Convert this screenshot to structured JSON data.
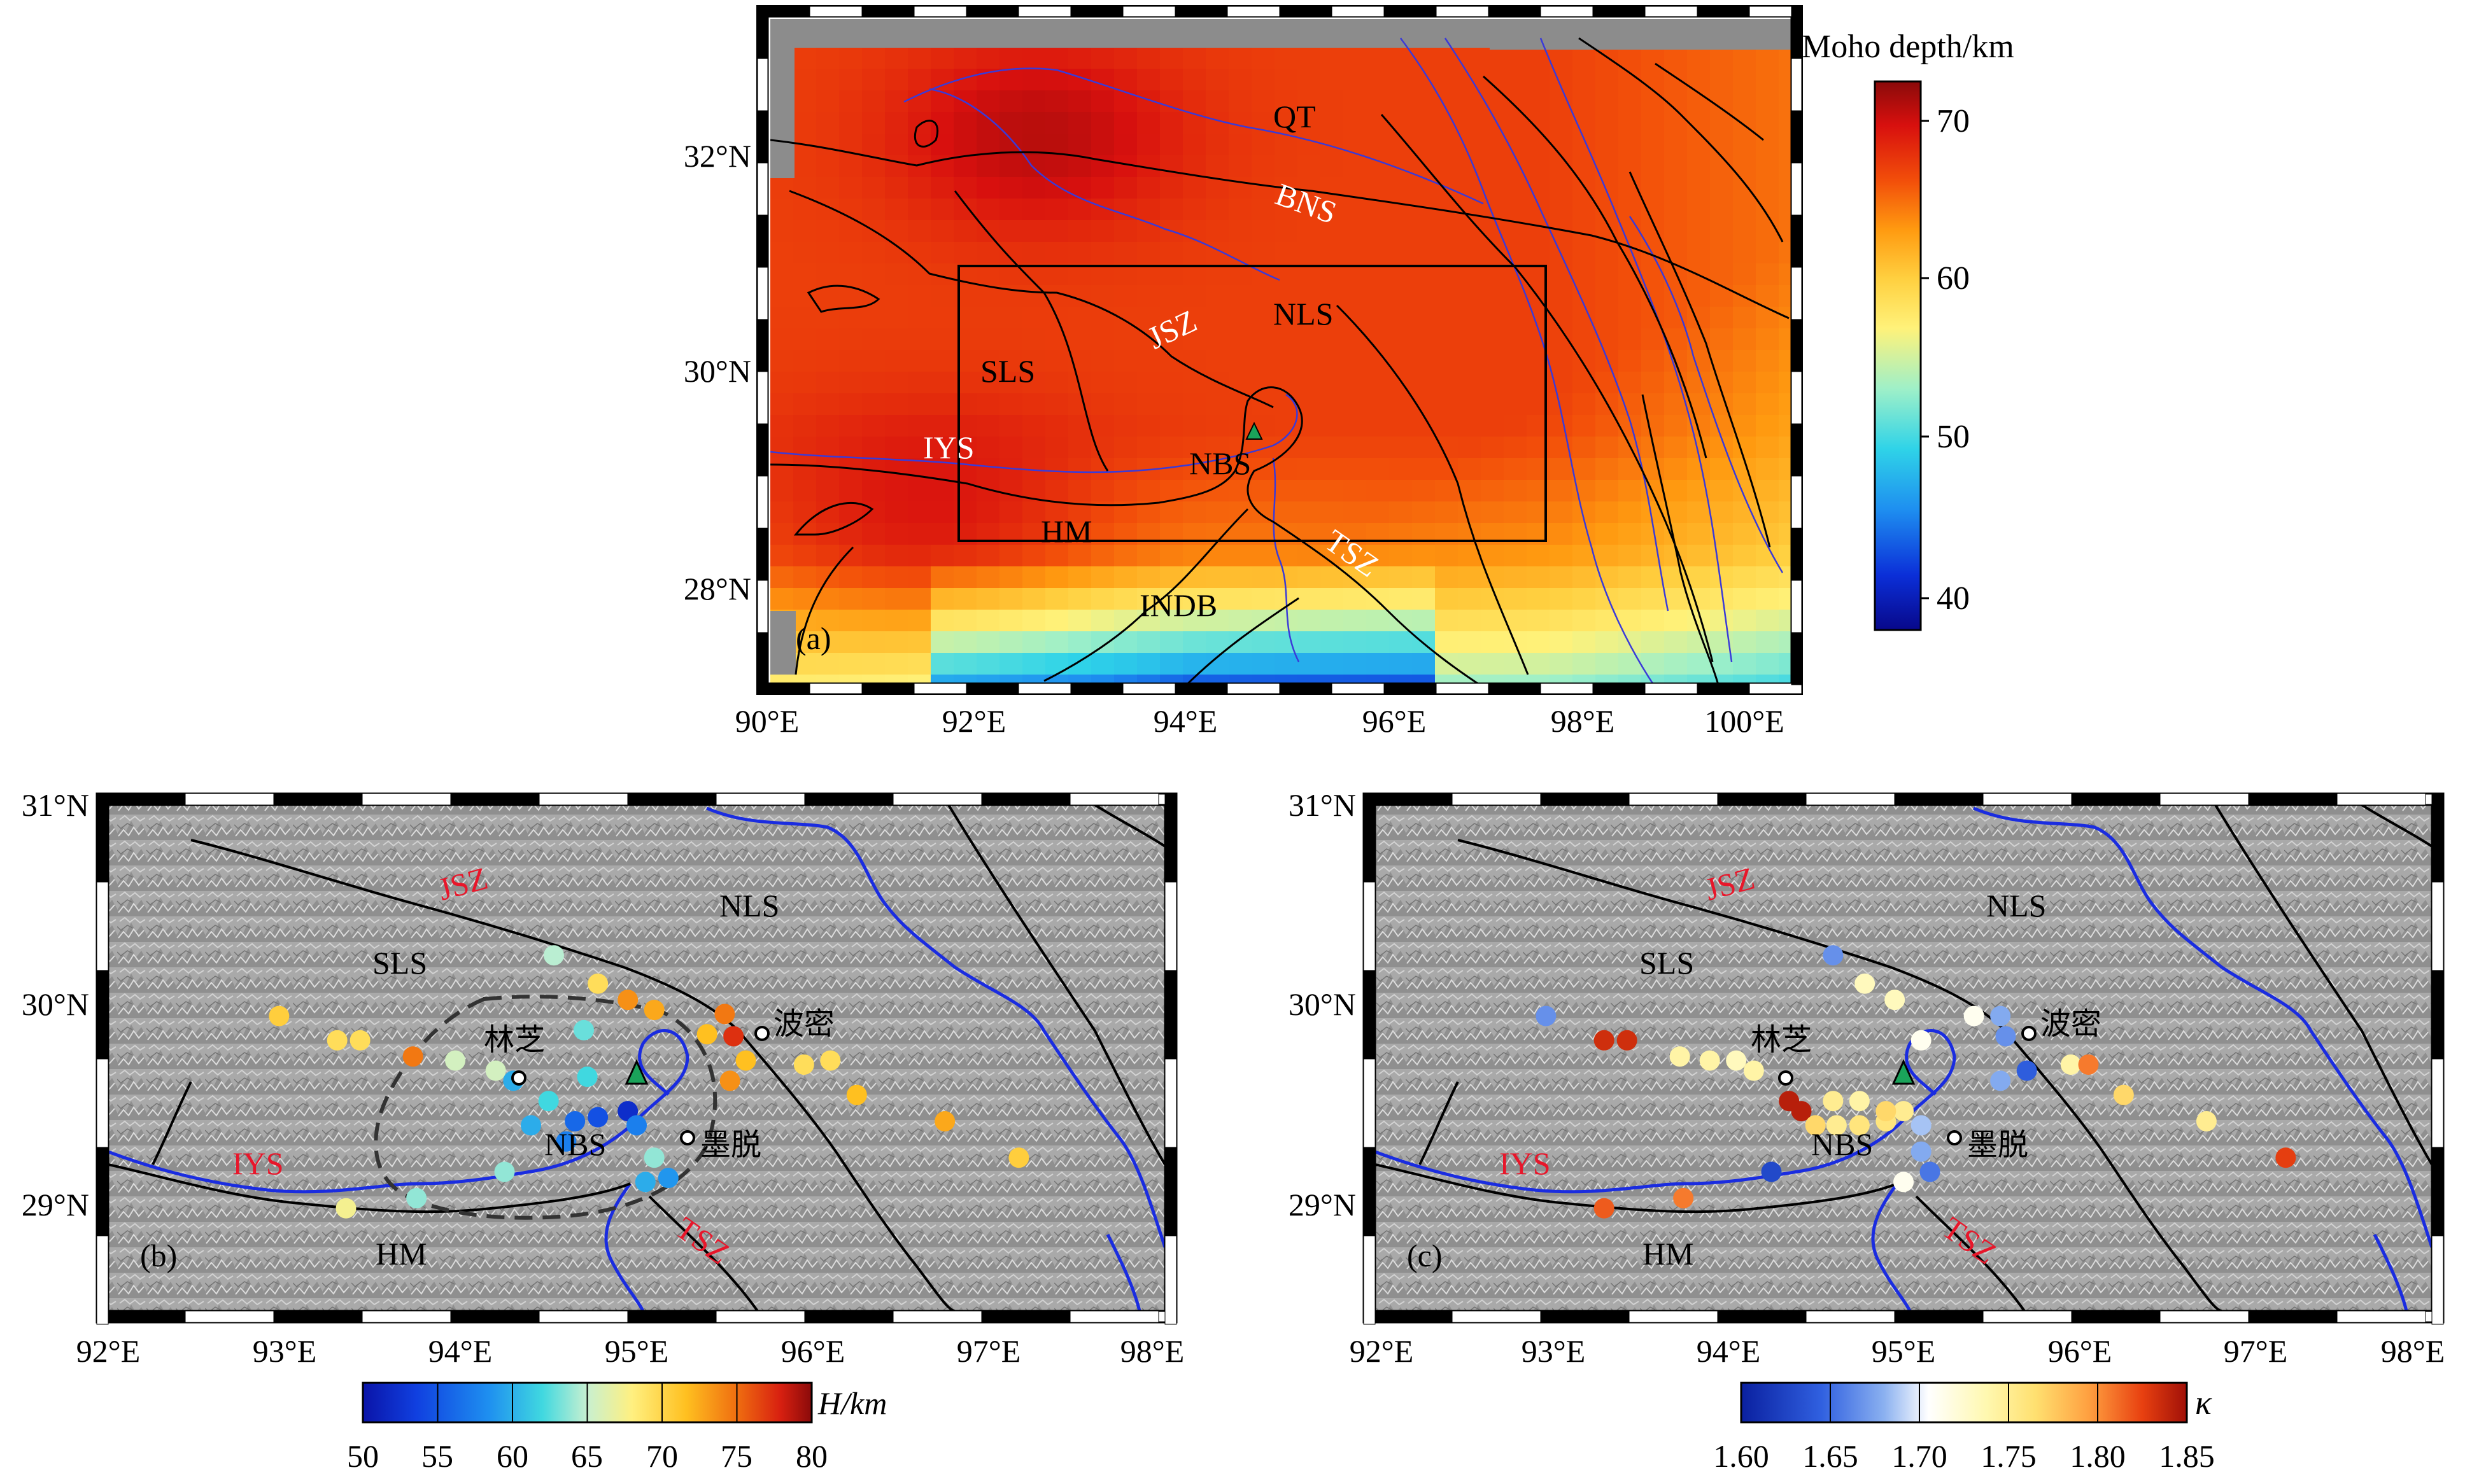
{
  "panel_a": {
    "tag": "(a)",
    "colorbar_title": "Moho depth/km",
    "colorbar_ticks": [
      "70",
      "60",
      "50",
      "40"
    ],
    "lat_labels": [
      "32°N",
      "30°N",
      "28°N"
    ],
    "lon_labels": [
      "90°E",
      "92°E",
      "94°E",
      "96°E",
      "98°E",
      "100°E"
    ],
    "region_labels": {
      "QT": "QT",
      "BNS": "BNS",
      "JSZ": "JSZ",
      "NLS": "NLS",
      "SLS": "SLS",
      "IYS": "IYS",
      "NBS": "NBS",
      "HM": "HM",
      "TSZ": "TSZ",
      "INDB": "INDB"
    },
    "colormap": [
      "#08088a",
      "#0b2fd8",
      "#1e8ff0",
      "#2fd3e8",
      "#9ff0c8",
      "#fff27a",
      "#ffd040",
      "#ff9a10",
      "#f24e0a",
      "#d8100e",
      "#8a0a0a"
    ]
  },
  "panel_b": {
    "tag": "(b)",
    "colorbar_title": "H/km",
    "colorbar_ticks": [
      "50",
      "55",
      "60",
      "65",
      "70",
      "75",
      "80"
    ],
    "lat_labels": [
      "31°N",
      "30°N",
      "29°N"
    ],
    "lon_labels": [
      "92°E",
      "93°E",
      "94°E",
      "95°E",
      "96°E",
      "97°E",
      "98°E"
    ],
    "region_labels": {
      "JSZ": "JSZ",
      "NLS": "NLS",
      "SLS": "SLS",
      "IYS": "IYS",
      "NBS": "NBS",
      "HM": "HM",
      "TSZ": "TSZ"
    },
    "city_labels": [
      "林芝",
      "波密",
      "墨脱"
    ],
    "colormap": [
      "#0a14a8",
      "#1040e0",
      "#1e8ff0",
      "#40d8e0",
      "#c8f0d0",
      "#fff080",
      "#ffc020",
      "#f07010",
      "#d82010",
      "#8a0a0a"
    ]
  },
  "panel_c": {
    "tag": "(c)",
    "colorbar_title": "κ",
    "colorbar_ticks": [
      "1.60",
      "1.65",
      "1.70",
      "1.75",
      "1.80",
      "1.85"
    ],
    "lat_labels": [
      "31°N",
      "30°N",
      "29°N"
    ],
    "lon_labels": [
      "92°E",
      "93°E",
      "94°E",
      "95°E",
      "96°E",
      "97°E",
      "98°E"
    ],
    "region_labels": {
      "JSZ": "JSZ",
      "NLS": "NLS",
      "SLS": "SLS",
      "IYS": "IYS",
      "NBS": "NBS",
      "HM": "HM",
      "TSZ": "TSZ"
    },
    "city_labels": [
      "林芝",
      "波密",
      "墨脱"
    ],
    "colormap": [
      "#0a20a0",
      "#3060e0",
      "#8ab0f0",
      "#ffffff",
      "#fff8b0",
      "#ffe070",
      "#ffa040",
      "#e84010",
      "#a01008"
    ]
  },
  "stations_b": [
    [
      92.97,
      30.02,
      69
    ],
    [
      93.3,
      29.9,
      68
    ],
    [
      93.43,
      29.9,
      68
    ],
    [
      93.73,
      29.82,
      73
    ],
    [
      93.97,
      29.8,
      64
    ],
    [
      94.2,
      29.75,
      64
    ],
    [
      94.53,
      30.32,
      63
    ],
    [
      94.78,
      30.18,
      68
    ],
    [
      94.95,
      30.1,
      72
    ],
    [
      95.1,
      30.05,
      71
    ],
    [
      95.5,
      30.03,
      73
    ],
    [
      95.4,
      29.93,
      70
    ],
    [
      95.55,
      29.92,
      76
    ],
    [
      95.62,
      29.8,
      70
    ],
    [
      95.95,
      29.78,
      68
    ],
    [
      96.1,
      29.8,
      68
    ],
    [
      96.25,
      29.63,
      70
    ],
    [
      96.75,
      29.5,
      71
    ],
    [
      97.17,
      29.32,
      69
    ],
    [
      95.53,
      29.7,
      72
    ],
    [
      94.5,
      29.6,
      60
    ],
    [
      94.65,
      29.5,
      55
    ],
    [
      94.78,
      29.52,
      54
    ],
    [
      94.6,
      29.4,
      56
    ],
    [
      94.4,
      29.48,
      58
    ],
    [
      94.72,
      29.72,
      60
    ],
    [
      94.7,
      29.95,
      61
    ],
    [
      94.95,
      29.55,
      52
    ],
    [
      95.0,
      29.48,
      56
    ],
    [
      95.1,
      29.32,
      62
    ],
    [
      95.18,
      29.22,
      57
    ],
    [
      95.05,
      29.2,
      58
    ],
    [
      94.25,
      29.25,
      62
    ],
    [
      93.75,
      29.12,
      62
    ],
    [
      93.35,
      29.07,
      66
    ],
    [
      94.3,
      29.7,
      58
    ]
  ],
  "stations_c": [
    [
      92.97,
      30.02,
      1.65
    ],
    [
      93.3,
      29.9,
      1.83
    ],
    [
      93.43,
      29.9,
      1.83
    ],
    [
      93.73,
      29.82,
      1.73
    ],
    [
      93.9,
      29.8,
      1.73
    ],
    [
      94.05,
      29.8,
      1.72
    ],
    [
      94.15,
      29.75,
      1.73
    ],
    [
      94.6,
      30.32,
      1.65
    ],
    [
      94.78,
      30.18,
      1.72
    ],
    [
      94.95,
      30.1,
      1.72
    ],
    [
      95.1,
      29.9,
      1.7
    ],
    [
      95.4,
      30.02,
      1.7
    ],
    [
      95.55,
      30.02,
      1.66
    ],
    [
      95.58,
      29.92,
      1.65
    ],
    [
      95.55,
      29.7,
      1.66
    ],
    [
      95.7,
      29.75,
      1.63
    ],
    [
      95.95,
      29.78,
      1.73
    ],
    [
      96.05,
      29.78,
      1.8
    ],
    [
      96.25,
      29.63,
      1.76
    ],
    [
      96.72,
      29.5,
      1.74
    ],
    [
      97.17,
      29.32,
      1.82
    ],
    [
      94.35,
      29.6,
      1.84
    ],
    [
      94.42,
      29.55,
      1.84
    ],
    [
      94.5,
      29.48,
      1.76
    ],
    [
      94.62,
      29.48,
      1.74
    ],
    [
      94.75,
      29.48,
      1.75
    ],
    [
      94.9,
      29.5,
      1.75
    ],
    [
      95.0,
      29.55,
      1.74
    ],
    [
      94.6,
      29.6,
      1.74
    ],
    [
      94.75,
      29.6,
      1.73
    ],
    [
      95.1,
      29.35,
      1.66
    ],
    [
      95.15,
      29.25,
      1.64
    ],
    [
      95.0,
      29.2,
      1.7
    ],
    [
      94.9,
      29.55,
      1.76
    ],
    [
      94.25,
      29.25,
      1.62
    ],
    [
      93.75,
      29.12,
      1.8
    ],
    [
      93.3,
      29.07,
      1.81
    ],
    [
      95.1,
      29.48,
      1.67
    ]
  ]
}
